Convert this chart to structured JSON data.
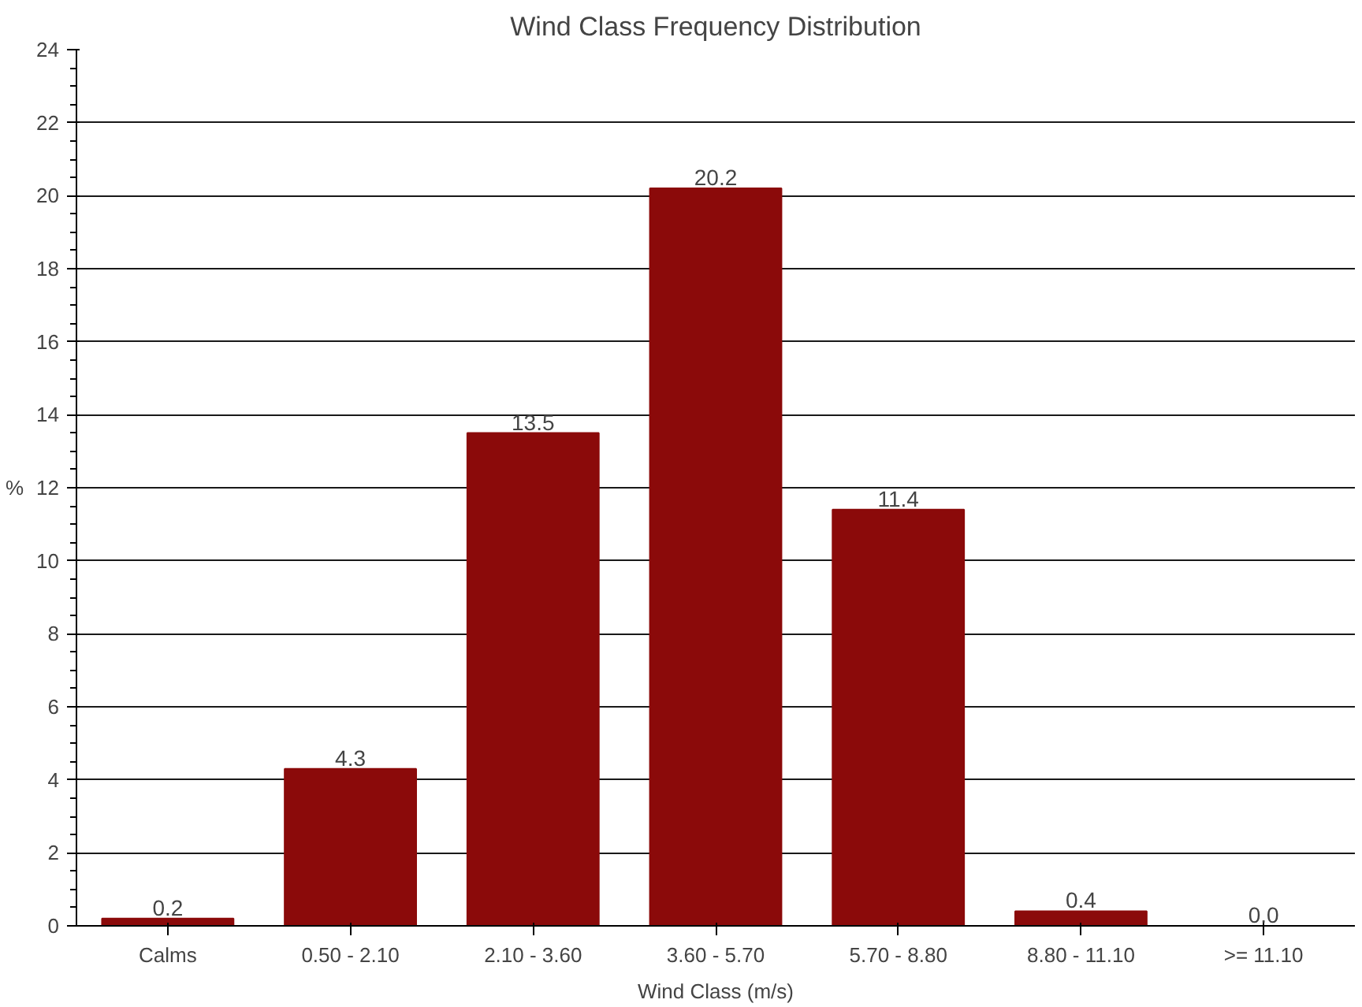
{
  "chart_data": {
    "type": "bar",
    "title": "Wind Class Frequency Distribution",
    "xlabel": "Wind Class (m/s)",
    "ylabel": "%",
    "categories": [
      "Calms",
      "0.50 - 2.10",
      "2.10 - 3.60",
      "3.60 - 5.70",
      "5.70 - 8.80",
      "8.80 - 11.10",
      ">= 11.10"
    ],
    "values": [
      0.2,
      4.3,
      13.5,
      20.2,
      11.4,
      0.4,
      0.0
    ],
    "color": "#8b0a0a",
    "ylim": [
      0,
      24
    ],
    "yticks": [
      0,
      2,
      4,
      6,
      8,
      10,
      12,
      14,
      16,
      18,
      20,
      22,
      24
    ],
    "value_labels": [
      "0.2",
      "4.3",
      "13.5",
      "20.2",
      "11.4",
      "0.4",
      "0.0"
    ],
    "grid": "y"
  }
}
